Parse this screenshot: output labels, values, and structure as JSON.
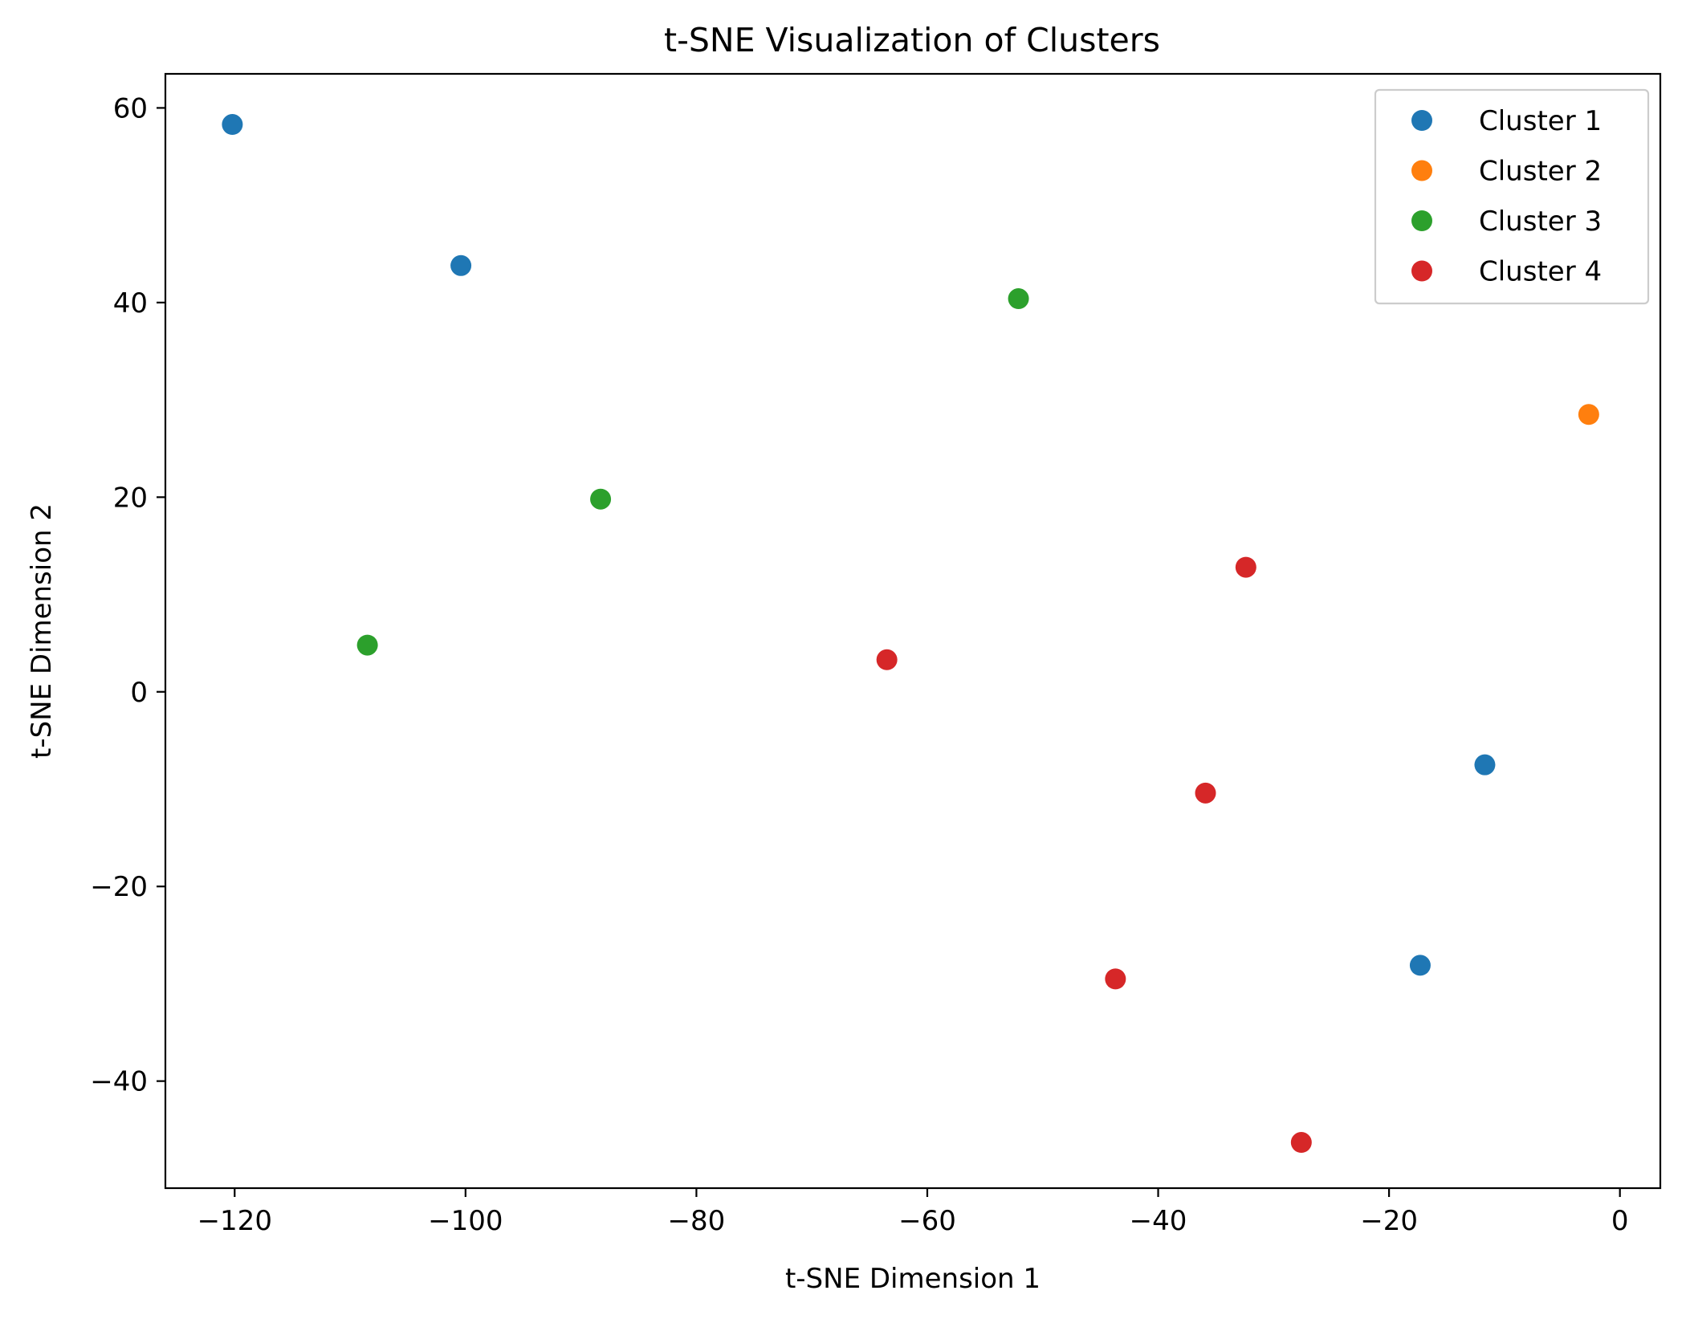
{
  "chart_data": {
    "type": "scatter",
    "title": "t-SNE Visualization of Clusters",
    "xlabel": "t-SNE Dimension 1",
    "ylabel": "t-SNE Dimension 2",
    "xlim": [
      -126,
      3.5
    ],
    "ylim": [
      -51,
      63.5
    ],
    "xticks": [
      -120,
      -100,
      -80,
      -60,
      -40,
      -20,
      0
    ],
    "yticks": [
      -40,
      -20,
      0,
      20,
      40,
      60
    ],
    "grid": false,
    "legend_position": "top-right",
    "series": [
      {
        "name": "Cluster 1",
        "color": "#1f77b4",
        "points": [
          {
            "x": -120.2,
            "y": 58.3
          },
          {
            "x": -100.4,
            "y": 43.8
          },
          {
            "x": -11.7,
            "y": -7.5
          },
          {
            "x": -17.3,
            "y": -28.1
          }
        ]
      },
      {
        "name": "Cluster 2",
        "color": "#ff7f0e",
        "points": [
          {
            "x": -2.7,
            "y": 28.5
          }
        ]
      },
      {
        "name": "Cluster 3",
        "color": "#2ca02c",
        "points": [
          {
            "x": -52.1,
            "y": 40.4
          },
          {
            "x": -88.3,
            "y": 19.8
          },
          {
            "x": -108.5,
            "y": 4.8
          }
        ]
      },
      {
        "name": "Cluster 4",
        "color": "#d62728",
        "points": [
          {
            "x": -32.4,
            "y": 12.8
          },
          {
            "x": -63.5,
            "y": 3.3
          },
          {
            "x": -35.9,
            "y": -10.4
          },
          {
            "x": -43.7,
            "y": -29.5
          },
          {
            "x": -27.6,
            "y": -46.3
          }
        ]
      }
    ]
  }
}
